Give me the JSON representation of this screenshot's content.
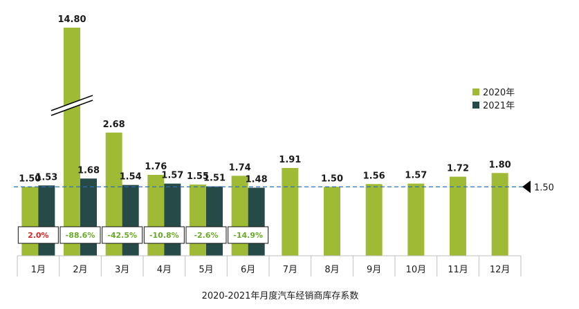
{
  "chart_data": {
    "type": "bar",
    "title": "2020-2021年月度汽车经销商库存系数",
    "categories": [
      "1月",
      "2月",
      "3月",
      "4月",
      "5月",
      "6月",
      "7月",
      "8月",
      "9月",
      "10月",
      "11月",
      "12月"
    ],
    "series": [
      {
        "name": "2020年",
        "color": "#9fba34",
        "values": [
          1.5,
          14.8,
          2.68,
          1.76,
          1.55,
          1.74,
          1.91,
          1.5,
          1.56,
          1.57,
          1.72,
          1.8
        ]
      },
      {
        "name": "2021年",
        "color": "#264a48",
        "values": [
          1.53,
          1.68,
          1.54,
          1.57,
          1.51,
          1.48,
          null,
          null,
          null,
          null,
          null,
          null
        ]
      }
    ],
    "value_labels": {
      "2020年": [
        "1.50",
        "14.80",
        "2.68",
        "1.76",
        "1.55",
        "1.74",
        "1.91",
        "1.50",
        "1.56",
        "1.57",
        "1.72",
        "1.80"
      ],
      "2021年": [
        "1.53",
        "1.68",
        "1.54",
        "1.57",
        "1.51",
        "1.48",
        "",
        "",
        "",
        "",
        "",
        ""
      ]
    },
    "yoy_change": [
      "2.0%",
      "-88.6%",
      "-42.5%",
      "-10.8%",
      "-2.6%",
      "-14.9%"
    ],
    "yoy_colors": [
      "#e02020",
      "#6aaa2a",
      "#6aaa2a",
      "#6aaa2a",
      "#6aaa2a",
      "#6aaa2a"
    ],
    "reference_line": {
      "value": 1.5,
      "label": "1.50",
      "color": "#2e6db4"
    },
    "axis_break": {
      "category": "2月",
      "series": "2020年"
    },
    "legend_position": "right",
    "grid": false
  }
}
